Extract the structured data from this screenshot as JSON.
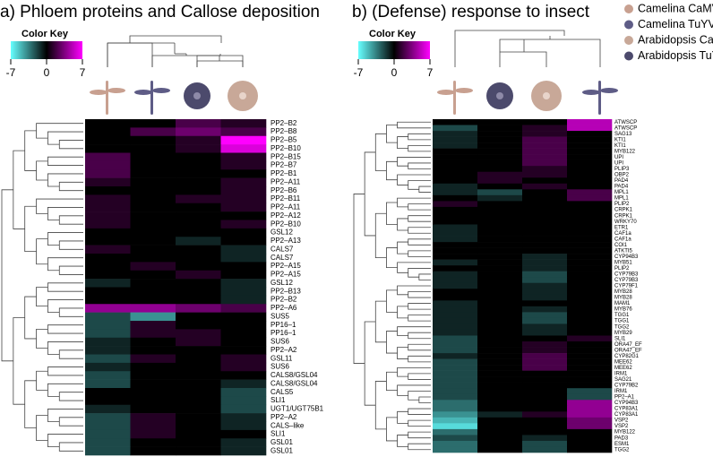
{
  "chart_data": [
    {
      "type": "heatmap",
      "title": "a) Phloem proteins and Callose deposition",
      "color_key_title": "Color Key",
      "clim": [
        -7,
        7
      ],
      "clim_ticks": [
        -7,
        0,
        7
      ],
      "colors": {
        "low": "#66ffff",
        "mid": "#000000",
        "high": "#ff00ff"
      },
      "rows": [
        "PP2–B2",
        "PP2–B8",
        "PP2–B5",
        "PP2–B10",
        "PP2–B15",
        "PP2–B7",
        "PP2–B1",
        "PP2–A11",
        "PP2–B6",
        "PP2–B11",
        "PP2–A11",
        "PP2–A12",
        "PP2–B10",
        "GSL12",
        "PP2–A13",
        "CALS7",
        "CALS7",
        "PP2–A15",
        "PP2–A15",
        "GSL12",
        "PP2–B13",
        "PP2–B2",
        "PP2–A6",
        "SUS5",
        "PP16–1",
        "PP16–1",
        "SUS6",
        "PP2–A2",
        "GSL11",
        "SUS6",
        "CALS8/GSL04",
        "CALS8/GSL04",
        "CALS5",
        "SLI1",
        "UGT1/UGT75B1",
        "PP2–A2",
        "CALS–like",
        "SLI1",
        "GSL01",
        "GSL01"
      ],
      "values": [
        [
          0,
          0,
          2,
          1
        ],
        [
          0,
          2,
          3,
          2
        ],
        [
          0,
          0,
          1,
          7
        ],
        [
          0,
          0,
          1,
          6
        ],
        [
          2,
          0,
          0,
          1
        ],
        [
          2,
          0,
          0,
          1
        ],
        [
          2,
          0,
          0,
          0
        ],
        [
          1,
          0,
          0,
          1
        ],
        [
          0,
          0,
          0,
          1
        ],
        [
          1,
          0,
          1,
          1
        ],
        [
          1,
          0,
          0,
          1
        ],
        [
          1,
          0,
          0,
          0
        ],
        [
          1,
          0,
          0,
          1
        ],
        [
          0,
          0,
          0,
          0
        ],
        [
          0,
          0,
          -1,
          0
        ],
        [
          1,
          0,
          0,
          -1
        ],
        [
          0,
          0,
          0,
          -1
        ],
        [
          0,
          1,
          0,
          0
        ],
        [
          0,
          0,
          1,
          0
        ],
        [
          -1,
          0,
          0,
          -1
        ],
        [
          0,
          0,
          0,
          -1
        ],
        [
          0,
          0,
          0,
          -1
        ],
        [
          4,
          4,
          3,
          2
        ],
        [
          -2,
          -4,
          0,
          0
        ],
        [
          -2,
          1,
          0,
          0
        ],
        [
          -2,
          1,
          1,
          0
        ],
        [
          -1,
          0,
          1,
          0
        ],
        [
          -1,
          0,
          0,
          0
        ],
        [
          -2,
          1,
          0,
          1
        ],
        [
          -1,
          0,
          0,
          1
        ],
        [
          -2,
          0,
          0,
          0
        ],
        [
          -2,
          0,
          0,
          -1
        ],
        [
          0,
          0,
          0,
          -2
        ],
        [
          0,
          0,
          0,
          -2
        ],
        [
          -1,
          0,
          0,
          -2
        ],
        [
          -2,
          1,
          0,
          -1
        ],
        [
          -2,
          1,
          0,
          -1
        ],
        [
          -2,
          1,
          0,
          0
        ],
        [
          -2,
          0,
          0,
          -1
        ],
        [
          -2,
          0,
          0,
          -1
        ]
      ]
    },
    {
      "type": "heatmap",
      "title": "b) (Defense) response to insect",
      "color_key_title": "Color Key",
      "clim": [
        -7,
        7
      ],
      "clim_ticks": [
        -7,
        0,
        7
      ],
      "colors": {
        "low": "#66ffff",
        "mid": "#000000",
        "high": "#ff00ff"
      },
      "rows": [
        "ATWSCP",
        "ATWSCP",
        "SAG13",
        "KTI1",
        "KTI1",
        "MYB122",
        "UPI",
        "UPI",
        "PLIP3",
        "OBP2",
        "PAD4",
        "PAD4",
        "MPL1",
        "MPL1",
        "PLIP2",
        "CRPK1",
        "CRPK1",
        "WRKY70",
        "ETR1",
        "CAF1a",
        "CAF1a",
        "COI1",
        "ATKTI5",
        "CYP94B3",
        "MYB51",
        "PLIP2",
        "CYP79B3",
        "CYP79B3",
        "CYP79F1",
        "MYB28",
        "MYB28",
        "MAM1",
        "MYB76",
        "TGG1",
        "TGG1",
        "TGG2",
        "MYB29",
        "SLI1",
        "ORA47_EF",
        "ORA47_EF",
        "CYP82G1",
        "MEE62",
        "MEE62",
        "IRM1",
        "SAG21",
        "CYP79B2",
        "IRM1",
        "PP2–A1",
        "CYP94B3",
        "CYP83A1",
        "CYP83A1",
        "VSP2",
        "VSP2",
        "MYB122",
        "PAD3",
        "ESM1",
        "TGG2"
      ],
      "values": [
        [
          0,
          0,
          0,
          5
        ],
        [
          -2,
          0,
          1,
          5
        ],
        [
          -1,
          0,
          1,
          0
        ],
        [
          -1,
          0,
          2,
          0
        ],
        [
          -1,
          0,
          2,
          0
        ],
        [
          0,
          0,
          2,
          0
        ],
        [
          0,
          0,
          2,
          0
        ],
        [
          0,
          0,
          2,
          0
        ],
        [
          0,
          0,
          1,
          0
        ],
        [
          0,
          1,
          1,
          0
        ],
        [
          0,
          1,
          0,
          0
        ],
        [
          -1,
          0,
          1,
          0
        ],
        [
          -1,
          -2,
          0,
          2
        ],
        [
          0,
          -1,
          0,
          2
        ],
        [
          1,
          0,
          0,
          0
        ],
        [
          0,
          0,
          0,
          0
        ],
        [
          0,
          0,
          0,
          0
        ],
        [
          0,
          0,
          0,
          0
        ],
        [
          -1,
          0,
          0,
          0
        ],
        [
          -1,
          0,
          0,
          0
        ],
        [
          -1,
          0,
          0,
          0
        ],
        [
          0,
          0,
          0,
          0
        ],
        [
          0,
          0,
          0,
          0
        ],
        [
          0,
          0,
          -1,
          0
        ],
        [
          -1,
          0,
          -1,
          0
        ],
        [
          0,
          0,
          -1,
          0
        ],
        [
          -1,
          0,
          -2,
          0
        ],
        [
          -1,
          0,
          -2,
          0
        ],
        [
          -1,
          0,
          -1,
          0
        ],
        [
          0,
          0,
          -1,
          0
        ],
        [
          0,
          0,
          -1,
          0
        ],
        [
          -1,
          0,
          0,
          0
        ],
        [
          -1,
          0,
          -1,
          0
        ],
        [
          -1,
          0,
          -2,
          0
        ],
        [
          -1,
          0,
          -2,
          0
        ],
        [
          -1,
          0,
          -1,
          0
        ],
        [
          -1,
          0,
          -1,
          0
        ],
        [
          -2,
          0,
          0,
          1
        ],
        [
          -2,
          0,
          1,
          0
        ],
        [
          -2,
          0,
          1,
          0
        ],
        [
          -1,
          0,
          2,
          0
        ],
        [
          -2,
          0,
          2,
          0
        ],
        [
          -2,
          0,
          2,
          0
        ],
        [
          -2,
          0,
          0,
          0
        ],
        [
          -2,
          0,
          0,
          0
        ],
        [
          -2,
          0,
          0,
          0
        ],
        [
          -2,
          0,
          0,
          -2
        ],
        [
          -2,
          0,
          0,
          -2
        ],
        [
          -3,
          0,
          0,
          4
        ],
        [
          -3,
          0,
          0,
          4
        ],
        [
          -4,
          -1,
          1,
          4
        ],
        [
          -5,
          0,
          0,
          3
        ],
        [
          -6,
          0,
          0,
          3
        ],
        [
          -3,
          0,
          0,
          0
        ],
        [
          -2,
          0,
          -1,
          0
        ],
        [
          -3,
          0,
          -2,
          0
        ],
        [
          -3,
          0,
          -2,
          0
        ]
      ]
    }
  ],
  "legend": [
    {
      "name": "Camelina CaMV",
      "color": "#c8a090"
    },
    {
      "name": "Camelina TuYV",
      "color": "#5e5c86"
    },
    {
      "name": "Arabidopsis CaMV",
      "color": "#c8a898"
    },
    {
      "name": "Arabidopsis TuYV",
      "color": "#4c4a6c"
    }
  ]
}
